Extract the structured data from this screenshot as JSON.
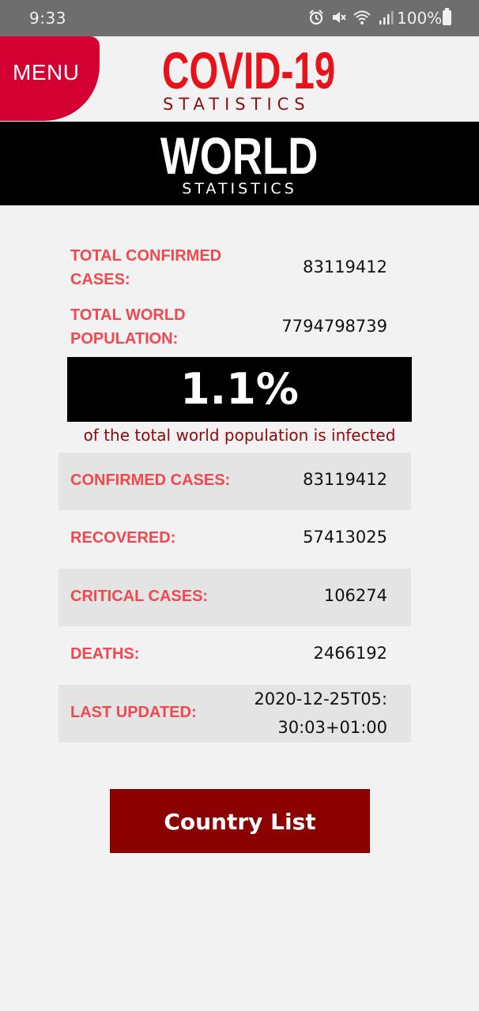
{
  "status_bar": {
    "time": "9:33",
    "battery": "100%",
    "icons": [
      "alarm-icon",
      "mute-icon",
      "wifi-icon",
      "signal-icon",
      "battery-icon"
    ]
  },
  "header": {
    "menu_label": "MENU",
    "title": "COVID-19",
    "subtitle": "STATISTICS"
  },
  "banner": {
    "title": "WORLD",
    "subtitle": "STATISTICS"
  },
  "summary": {
    "total_confirmed_label": "TOTAL CONFIRMED CASES:",
    "total_confirmed_value": "83119412",
    "total_population_label": "TOTAL WORLD POPULATION:",
    "total_population_value": "7794798739",
    "infected_percent": "1.1%",
    "infected_caption": "of the total world population is infected"
  },
  "stats": [
    {
      "label": "CONFIRMED CASES:",
      "value": "83119412"
    },
    {
      "label": "RECOVERED:",
      "value": "57413025"
    },
    {
      "label": "CRITICAL CASES:",
      "value": "106274"
    },
    {
      "label": "DEATHS:",
      "value": "2466192"
    },
    {
      "label": "LAST UPDATED:",
      "value_line1": "2020-12-25T05:",
      "value_line2": "30:03+01:00"
    }
  ],
  "country_button": "Country List",
  "colors": {
    "brand_red": "#e8121b",
    "menu_red": "#d50032",
    "label_red": "#f0484f",
    "dark_red": "#8b0000",
    "row_shade": "#e4e4e4"
  }
}
